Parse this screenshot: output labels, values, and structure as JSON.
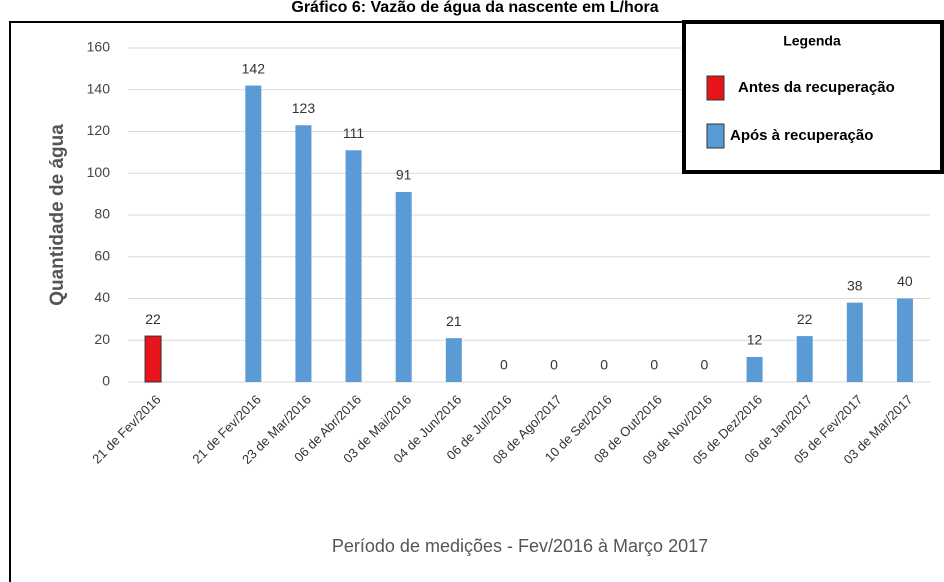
{
  "chart_data": {
    "type": "bar",
    "title": "Gráfico 6: Vazão de água da nascente em L/hora",
    "x_label": "Período de medições - Fev/2016 à Março 2017",
    "y_label": "Quantidade de água",
    "legend_title": "Legenda",
    "legend": "upper right",
    "grid": true,
    "categories": [
      "21 de Fev/2016",
      null,
      "21 de Fev/2016",
      "23 de Mar/2016",
      "06 de Abr/2016",
      "03 de Mai/2016",
      "04 de Jun/2016",
      "06 de Jul/2016",
      "08 de Ago/2017",
      "10 de Set/2016",
      "08 de Out/2016",
      "09 de Nov/2016",
      "05 de Dez/2016",
      "06 de Jan/2017",
      "05 de Fev/2017",
      "03 de Mar/2017"
    ],
    "series": [
      {
        "name": "Antes da recuperação",
        "color": "#e8141b",
        "values": [
          22,
          null,
          null,
          null,
          null,
          null,
          null,
          null,
          null,
          null,
          null,
          null,
          null,
          null,
          null,
          null
        ]
      },
      {
        "name": "Após à recuperação",
        "color": "#5b9bd5",
        "values": [
          null,
          null,
          142,
          123,
          111,
          91,
          21,
          0,
          0,
          0,
          0,
          0,
          12,
          22,
          38,
          40
        ]
      }
    ],
    "ylim": [
      0,
      160
    ],
    "yticks": [
      0,
      20,
      40,
      60,
      80,
      100,
      120,
      140,
      160
    ]
  }
}
